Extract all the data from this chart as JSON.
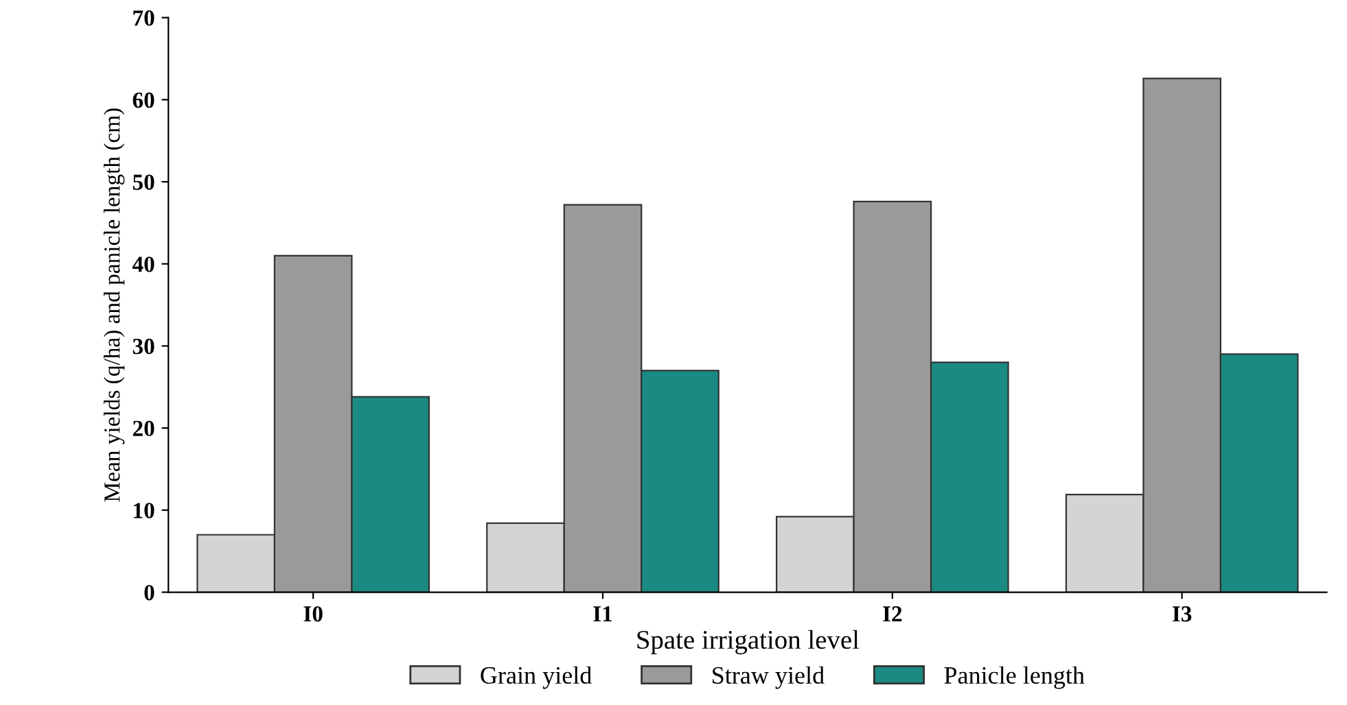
{
  "chart_data": {
    "type": "bar",
    "xlabel": "Spate irrigation level",
    "ylabel": "Mean yields (q/ha) and panicle length (cm)",
    "categories": [
      "I0",
      "I1",
      "I2",
      "I3"
    ],
    "series": [
      {
        "name": "Grain yield",
        "color": "#d4d4d4",
        "values": [
          7.0,
          8.4,
          9.2,
          11.9
        ]
      },
      {
        "name": "Straw yield",
        "color": "#9a9a9a",
        "values": [
          41.0,
          47.2,
          47.6,
          62.6
        ]
      },
      {
        "name": "Panicle length",
        "color": "#1b8a82",
        "values": [
          23.8,
          27.0,
          28.0,
          29.0
        ]
      }
    ],
    "ylim": [
      0,
      70
    ],
    "yticks": [
      0,
      10,
      20,
      30,
      40,
      50,
      60,
      70
    ],
    "grid": false,
    "legend": "bottom"
  }
}
